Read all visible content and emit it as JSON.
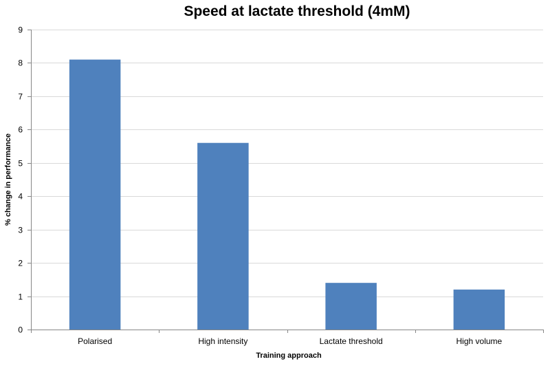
{
  "chart_data": {
    "type": "bar",
    "title": "Speed at lactate threshold (4mM)",
    "xlabel": "Training approach",
    "ylabel": "% change in performance",
    "categories": [
      "Polarised",
      "High intensity",
      "Lactate threshold",
      "High volume"
    ],
    "values": [
      8.1,
      5.6,
      1.4,
      1.2
    ],
    "ylim": [
      0,
      9
    ],
    "yticks": [
      0,
      1,
      2,
      3,
      4,
      5,
      6,
      7,
      8,
      9
    ],
    "grid": true,
    "legend": "none",
    "bar_color": "#4f81bd"
  }
}
